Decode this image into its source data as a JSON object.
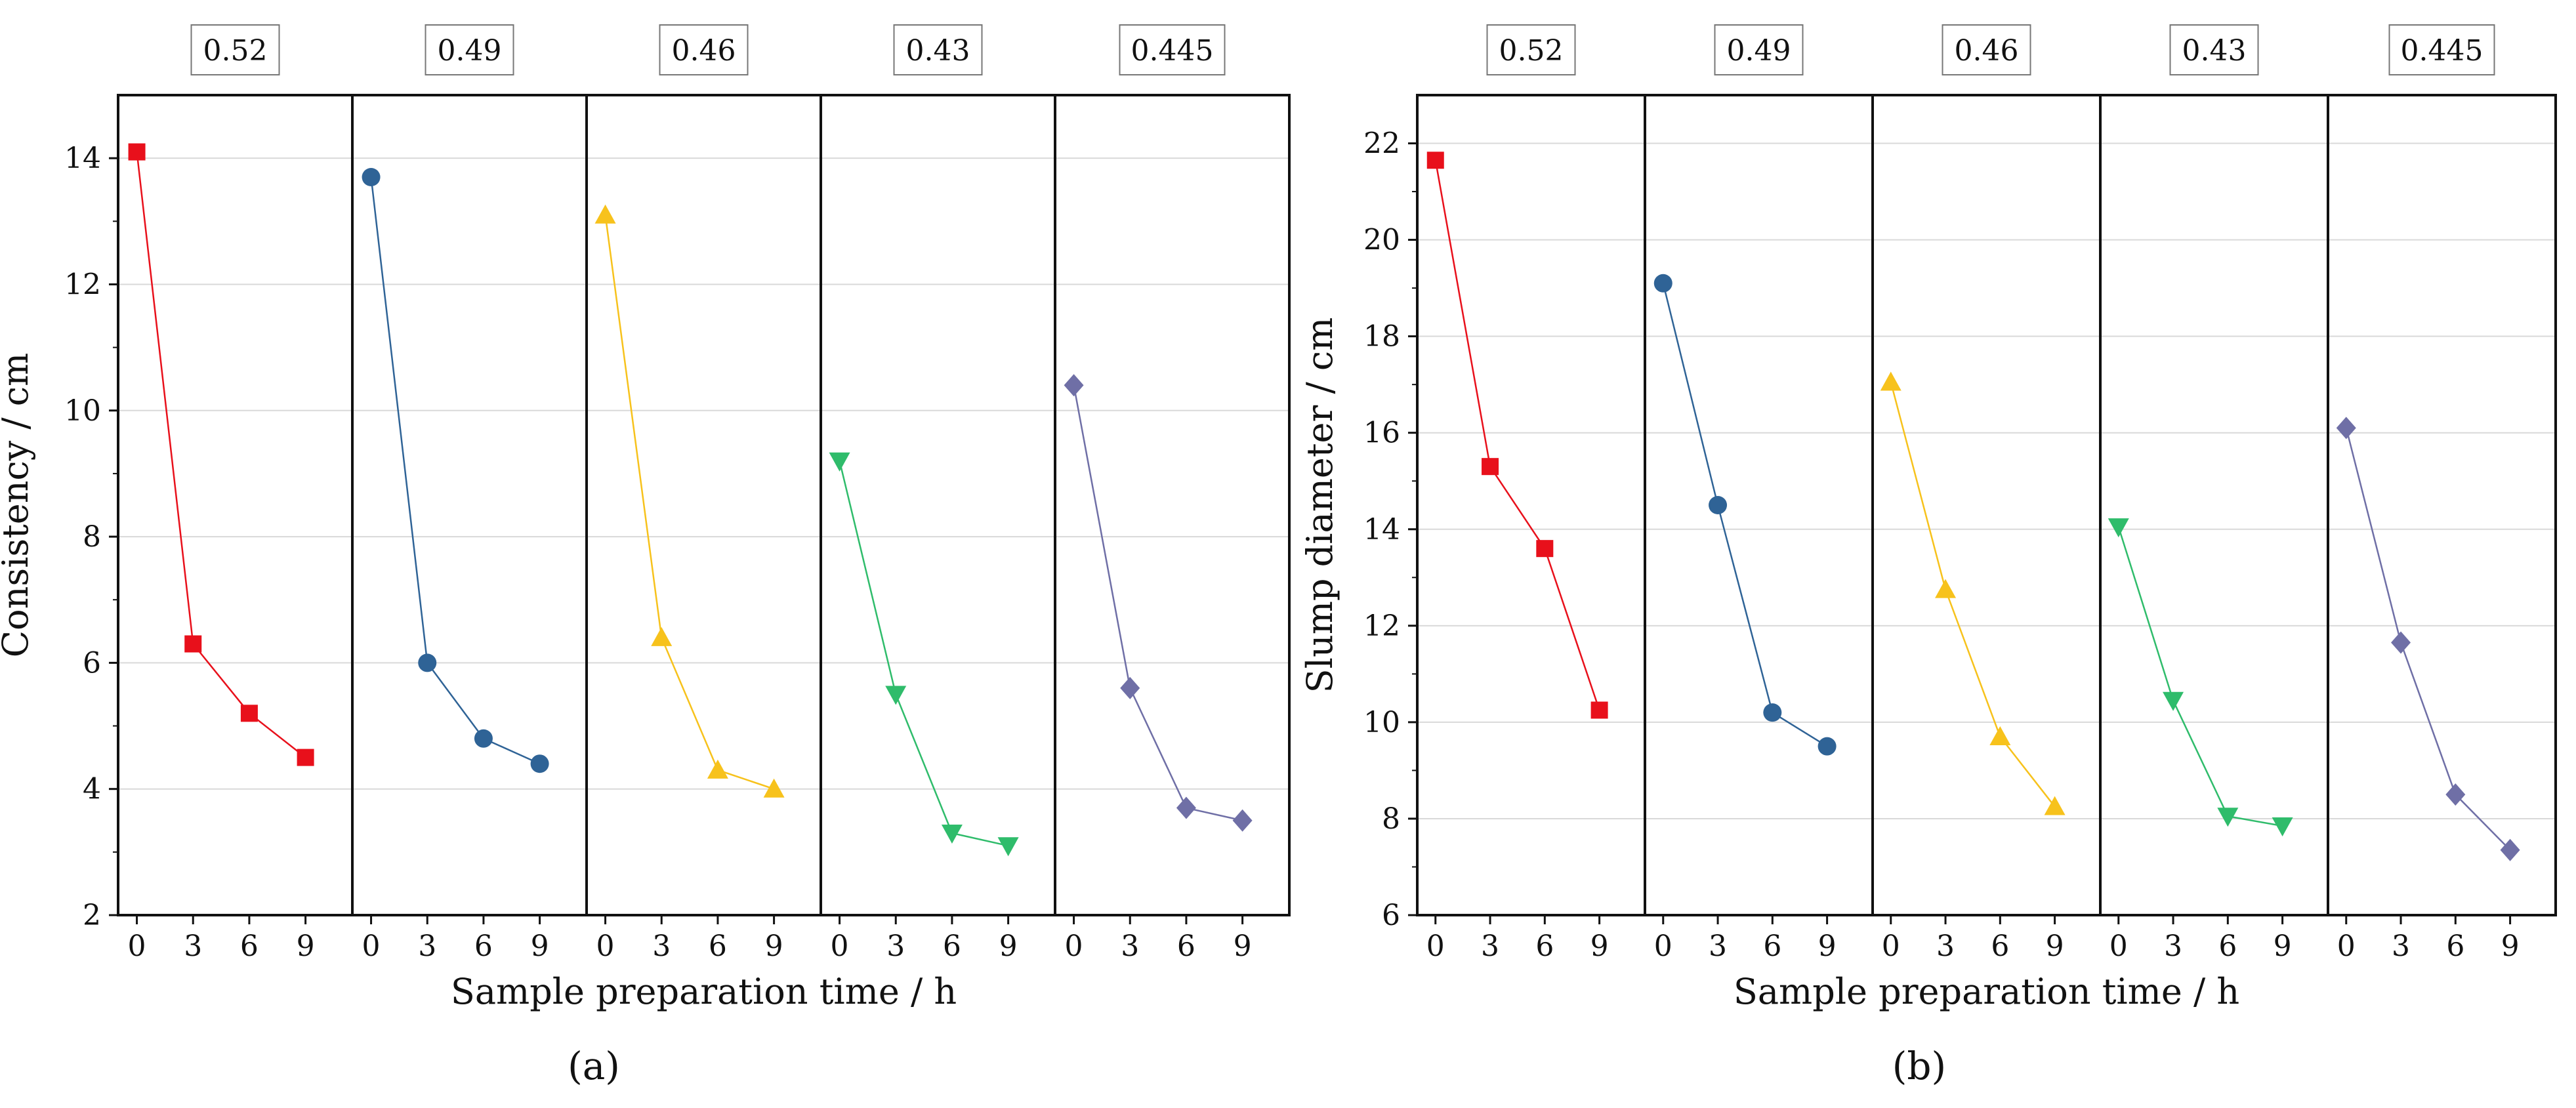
{
  "chart_data": [
    {
      "type": "line",
      "caption": "(a)",
      "ylabel": "Consistency / cm",
      "xlabel": "Sample preparation time / h",
      "ylim": [
        2,
        15
      ],
      "yticks": [
        2,
        4,
        6,
        8,
        10,
        12,
        14
      ],
      "x": [
        0,
        3,
        6,
        9
      ],
      "xlim": [
        -1,
        11.5
      ],
      "grid": true,
      "series": [
        {
          "name": "0.52",
          "color": "#e8101b",
          "marker": "square",
          "values": [
            14.1,
            6.3,
            5.2,
            4.5
          ]
        },
        {
          "name": "0.49",
          "color": "#2f6396",
          "marker": "circle",
          "values": [
            13.7,
            6.0,
            4.8,
            4.4
          ]
        },
        {
          "name": "0.46",
          "color": "#f7c21c",
          "marker": "triangle-up",
          "values": [
            13.1,
            6.4,
            4.3,
            4.0
          ]
        },
        {
          "name": "0.43",
          "color": "#2fbc6b",
          "marker": "triangle-down",
          "values": [
            9.2,
            5.5,
            3.3,
            3.1
          ]
        },
        {
          "name": "0.445",
          "color": "#6f6fa6",
          "marker": "diamond",
          "values": [
            10.4,
            5.6,
            3.7,
            3.5
          ]
        }
      ]
    },
    {
      "type": "line",
      "caption": "(b)",
      "ylabel": "Slump diameter / cm",
      "xlabel": "Sample preparation time / h",
      "ylim": [
        6,
        23
      ],
      "yticks": [
        6,
        8,
        10,
        12,
        14,
        16,
        18,
        20,
        22
      ],
      "x": [
        0,
        3,
        6,
        9
      ],
      "xlim": [
        -1,
        11.5
      ],
      "grid": true,
      "series": [
        {
          "name": "0.52",
          "color": "#e8101b",
          "marker": "square",
          "values": [
            21.65,
            15.3,
            13.6,
            10.25
          ]
        },
        {
          "name": "0.49",
          "color": "#2f6396",
          "marker": "circle",
          "values": [
            19.1,
            14.5,
            10.2,
            9.5
          ]
        },
        {
          "name": "0.46",
          "color": "#f7c21c",
          "marker": "triangle-up",
          "values": [
            17.05,
            12.75,
            9.7,
            8.25
          ]
        },
        {
          "name": "0.43",
          "color": "#2fbc6b",
          "marker": "triangle-down",
          "values": [
            14.05,
            10.45,
            8.05,
            7.85
          ]
        },
        {
          "name": "0.445",
          "color": "#6f6fa6",
          "marker": "diamond",
          "values": [
            16.1,
            11.65,
            8.5,
            7.35
          ]
        }
      ]
    }
  ]
}
